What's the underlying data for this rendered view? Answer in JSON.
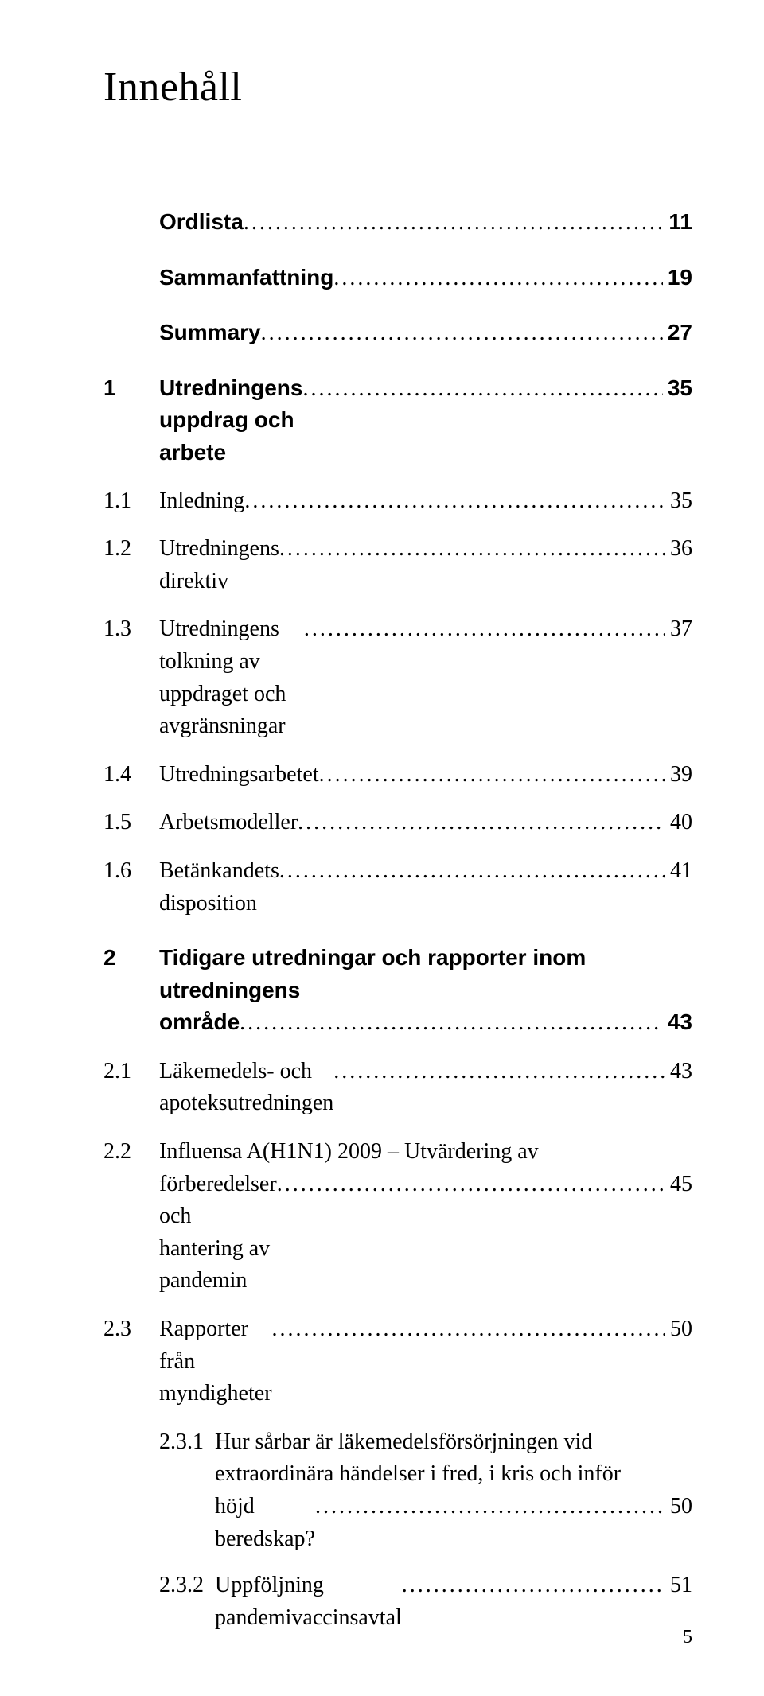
{
  "title": "Innehåll",
  "page_number": "5",
  "typography": {
    "title_fontsize_pt": 39,
    "body_fontsize_pt": 21,
    "bold_font_family": "Arial, Helvetica, sans-serif",
    "body_font_family": "Garamond, Times New Roman, serif",
    "text_color": "#000000",
    "background_color": "#ffffff"
  },
  "entries": [
    {
      "level": 0,
      "num": "",
      "label": "Ordlista",
      "page": "11"
    },
    {
      "level": 0,
      "num": "",
      "label": "Sammanfattning",
      "page": "19",
      "spaced": true
    },
    {
      "level": 0,
      "num": "",
      "label": "Summary",
      "page": "27",
      "spaced": true
    },
    {
      "level": 0,
      "num": "1",
      "label": "Utredningens uppdrag och arbete",
      "page": "35",
      "spaced": true
    },
    {
      "level": 1,
      "num": "1.1",
      "label": "Inledning",
      "page": "35"
    },
    {
      "level": 1,
      "num": "1.2",
      "label": "Utredningens direktiv",
      "page": "36"
    },
    {
      "level": 1,
      "num": "1.3",
      "label": "Utredningens tolkning av uppdraget och avgränsningar",
      "page": "37"
    },
    {
      "level": 1,
      "num": "1.4",
      "label": "Utredningsarbetet",
      "page": "39"
    },
    {
      "level": 1,
      "num": "1.5",
      "label": "Arbetsmodeller",
      "page": "40"
    },
    {
      "level": 1,
      "num": "1.6",
      "label": "Betänkandets disposition",
      "page": "41"
    },
    {
      "level": 0,
      "num": "2",
      "label_lines": [
        "Tidigare utredningar och rapporter inom utredningens",
        "område"
      ],
      "page": "43",
      "spaced": true
    },
    {
      "level": 1,
      "num": "2.1",
      "label": "Läkemedels- och apoteksutredningen",
      "page": "43"
    },
    {
      "level": 1,
      "num": "2.2",
      "label_lines": [
        "Influensa A(H1N1) 2009 – Utvärdering av",
        "förberedelser och hantering av pandemin"
      ],
      "page": "45"
    },
    {
      "level": 1,
      "num": "2.3",
      "label": "Rapporter från myndigheter",
      "page": "50"
    },
    {
      "level": 2,
      "num": "2.3.1",
      "label_lines": [
        "Hur sårbar är läkemedelsförsörjningen vid",
        "extraordinära händelser i fred, i kris och inför",
        "höjd beredskap?"
      ],
      "page": "50"
    },
    {
      "level": 2,
      "num": "2.3.2",
      "label": "Uppföljning pandemivaccinsavtal",
      "page": "51"
    }
  ]
}
